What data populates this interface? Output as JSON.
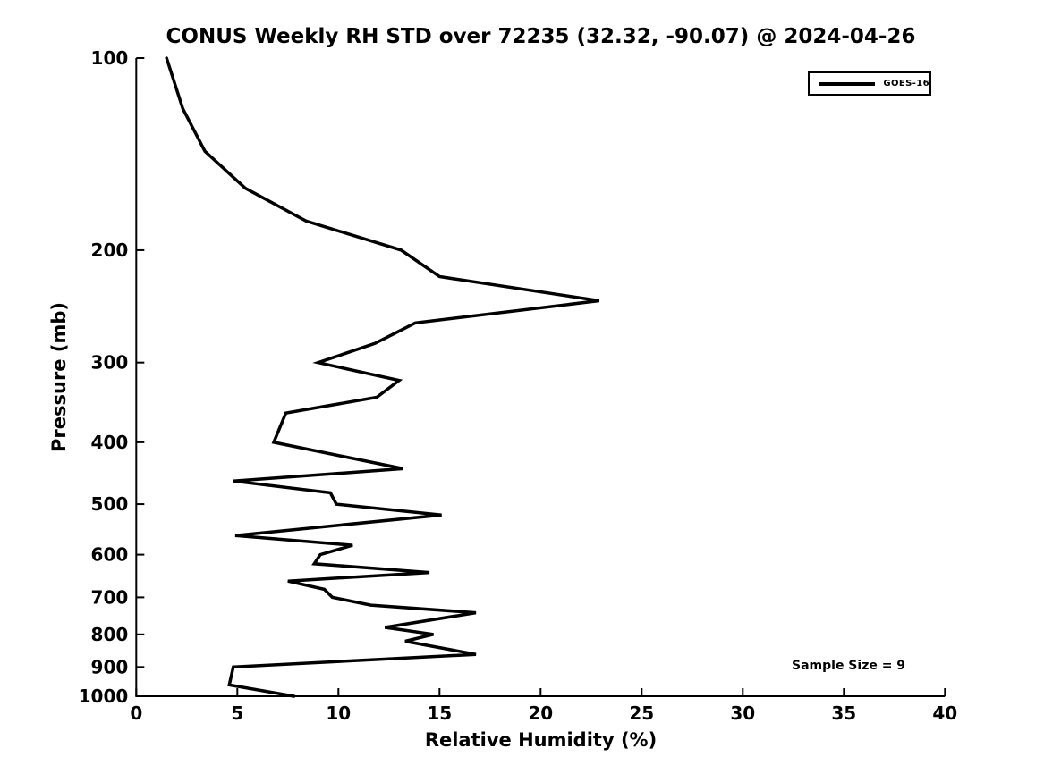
{
  "figure": {
    "title": "CONUS Weekly RH STD over 72235 (32.32, -90.07) @ 2024-04-26",
    "xlabel": "Relative Humidity (%)",
    "ylabel": "Pressure (mb)",
    "annotation": "Sample Size = 9",
    "legend": {
      "label": "GOES-16"
    },
    "colors": {
      "line": "#000000",
      "axis": "#000000",
      "background": "#ffffff"
    }
  },
  "chart_data": {
    "type": "line",
    "title": "CONUS Weekly RH STD over 72235 (32.32, -90.07) @ 2024-04-26",
    "xlabel": "Relative Humidity (%)",
    "ylabel": "Pressure (mb)",
    "xlim": [
      0,
      40
    ],
    "ylim": [
      100,
      1000
    ],
    "x_ticks": [
      0,
      5,
      10,
      15,
      20,
      25,
      30,
      35,
      40
    ],
    "y_ticks": [
      100,
      200,
      300,
      400,
      500,
      600,
      700,
      800,
      900,
      1000
    ],
    "y_scale": "log",
    "y_inverted": true,
    "grid": false,
    "legend_position": "upper right",
    "annotation": "Sample Size = 9",
    "series": [
      {
        "name": "GOES-16",
        "color": "#000000",
        "pressure_mb": [
          100,
          120,
          140,
          160,
          180,
          200,
          220,
          240,
          260,
          280,
          300,
          320,
          340,
          360,
          400,
          440,
          460,
          480,
          500,
          520,
          560,
          580,
          600,
          620,
          640,
          660,
          680,
          700,
          720,
          740,
          780,
          800,
          820,
          860,
          900,
          960,
          1000
        ],
        "rh_std_pct": [
          1.5,
          2.3,
          3.4,
          5.4,
          8.4,
          13.1,
          15.0,
          22.9,
          13.8,
          11.8,
          9.0,
          13.0,
          11.9,
          7.4,
          6.8,
          13.2,
          4.8,
          9.6,
          9.9,
          15.1,
          4.9,
          10.7,
          9.1,
          8.8,
          14.5,
          7.5,
          9.3,
          9.7,
          11.6,
          16.8,
          12.3,
          14.7,
          13.3,
          16.8,
          4.8,
          4.6,
          7.8
        ]
      }
    ]
  }
}
